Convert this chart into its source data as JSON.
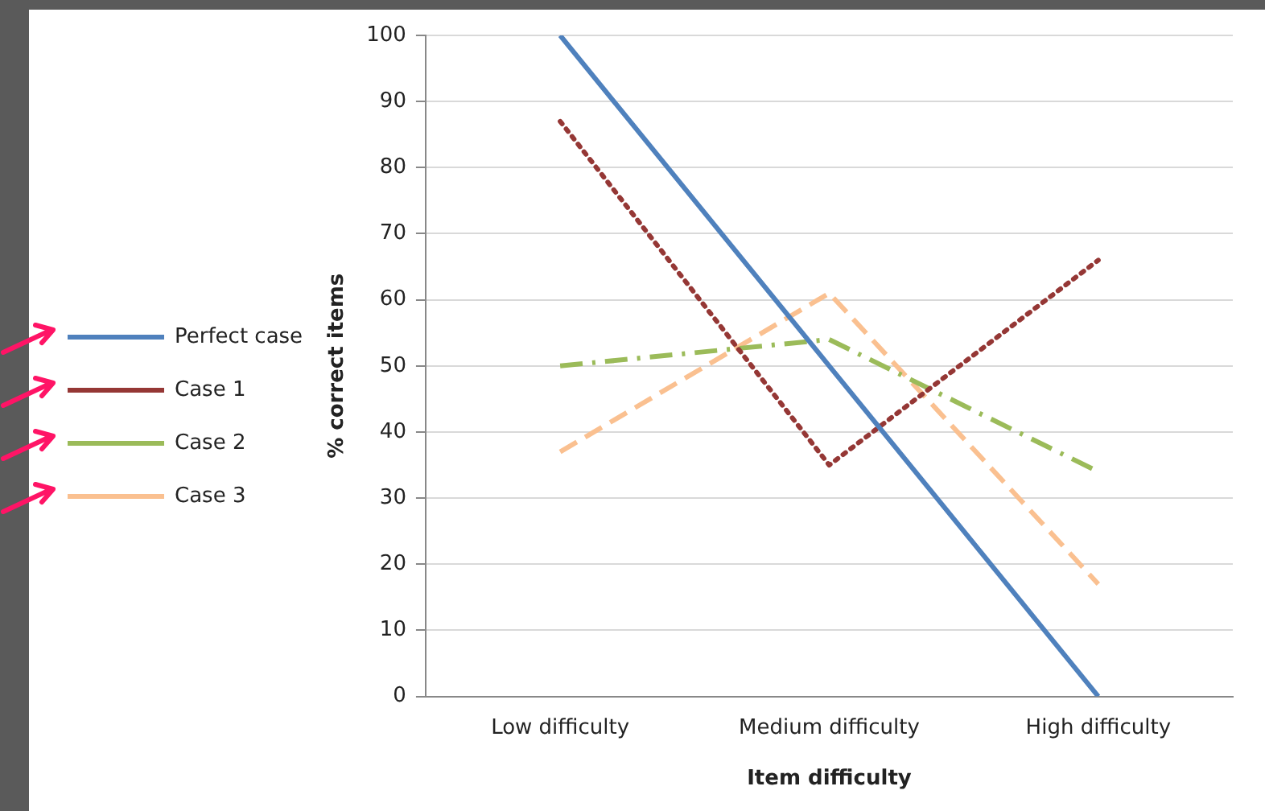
{
  "chart_data": {
    "type": "line",
    "xlabel": "Item difficulty",
    "ylabel": "% correct items",
    "categories": [
      "Low difficulty",
      "Medium difficulty",
      "High difficulty"
    ],
    "series": [
      {
        "name": "Perfect case",
        "color": "#4f81bd",
        "line_style": "solid",
        "values": [
          100,
          50,
          0
        ]
      },
      {
        "name": "Case 1",
        "color": "#953735",
        "line_style": "dotted",
        "values": [
          87,
          35,
          66
        ]
      },
      {
        "name": "Case 2",
        "color": "#9bbb59",
        "line_style": "dashdot",
        "values": [
          50,
          54,
          34
        ]
      },
      {
        "name": "Case 3",
        "color": "#fac090",
        "line_style": "dashed",
        "values": [
          37,
          61,
          17
        ]
      }
    ],
    "ylim": [
      0,
      100
    ],
    "yticks": [
      0,
      10,
      20,
      30,
      40,
      50,
      60,
      70,
      80,
      90,
      100
    ],
    "grid": "y",
    "legend": "left",
    "marker": "none"
  }
}
